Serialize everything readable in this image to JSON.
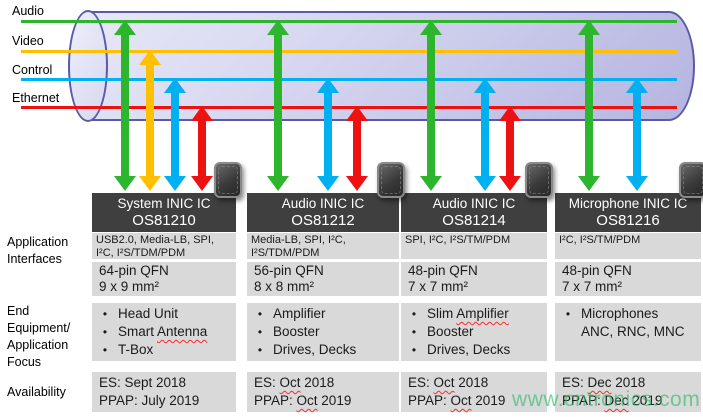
{
  "lanes": [
    {
      "id": "audio",
      "label": "Audio",
      "color": "#2db52d"
    },
    {
      "id": "video",
      "label": "Video",
      "color": "#ffc000"
    },
    {
      "id": "control",
      "label": "Control",
      "color": "#00b0f0"
    },
    {
      "id": "ethernet",
      "label": "Ethernet",
      "color": "#ee1111"
    }
  ],
  "row_labels": {
    "interfaces": "Application\nInterfaces",
    "focus": "End\nEquipment/\nApplication\nFocus",
    "availability": "Availability"
  },
  "columns": [
    {
      "title": "System INIC IC",
      "part": "OS81210",
      "interfaces": "USB2.0, Media-LB, SPI,\nI²C, I²S/TDM/PDM",
      "package": "64-pin QFN\n9 x 9 mm²",
      "focus": [
        {
          "text": "Head Unit"
        },
        {
          "text": "Smart Antenna",
          "mark": "Antenna"
        },
        {
          "text": "T-Box"
        }
      ],
      "availability": [
        {
          "text": "ES: Sept 2018"
        },
        {
          "text": "PPAP: July 2019"
        }
      ],
      "lanes": [
        "audio",
        "video",
        "control",
        "ethernet"
      ]
    },
    {
      "title": "Audio INIC IC",
      "part": "OS81212",
      "interfaces": "Media-LB, SPI, I²C,\nI²S/TDM/PDM",
      "package": "56-pin QFN\n8 x 8 mm²",
      "focus": [
        {
          "text": "Amplifier"
        },
        {
          "text": "Booster"
        },
        {
          "text": "Drives, Decks"
        }
      ],
      "availability": [
        {
          "text": "ES: Oct 2018",
          "mark": "Oct"
        },
        {
          "text": "PPAP: Oct 2019",
          "mark": "Oct"
        }
      ],
      "lanes": [
        "audio",
        "control",
        "ethernet"
      ]
    },
    {
      "title": "Audio INIC IC",
      "part": "OS81214",
      "interfaces": "SPI, I²C, I²S/TM/PDM",
      "package": "48-pin QFN\n7 x 7 mm²",
      "focus": [
        {
          "text": "Slim Amplifier",
          "mark": "Amplifier"
        },
        {
          "text": "Booster"
        },
        {
          "text": "Drives, Decks"
        }
      ],
      "availability": [
        {
          "text": "ES: Oct 2018",
          "mark": "Oct"
        },
        {
          "text": "PPAP: Oct 2019",
          "mark": "Oct"
        }
      ],
      "lanes": [
        "audio",
        "control",
        "ethernet"
      ]
    },
    {
      "title": "Microphone INIC IC",
      "part": "OS81216",
      "interfaces": "I²C, I²S/TM/PDM",
      "package": "48-pin QFN\n7 x 7 mm²",
      "focus": [
        {
          "text": "Microphones\nANC, RNC, MNC"
        }
      ],
      "availability": [
        {
          "text": "ES: Dec 2018",
          "mark": "Dec"
        },
        {
          "text": "PPAP: Dec 2019",
          "mark": "Dec"
        }
      ],
      "lanes": [
        "audio",
        "control"
      ]
    }
  ],
  "watermark": "www.cntronics.com",
  "colors": {
    "header_bg": "#3f3f3f",
    "row_bg": "#d9d9d9",
    "pipe_border": "#5a5aa8"
  }
}
